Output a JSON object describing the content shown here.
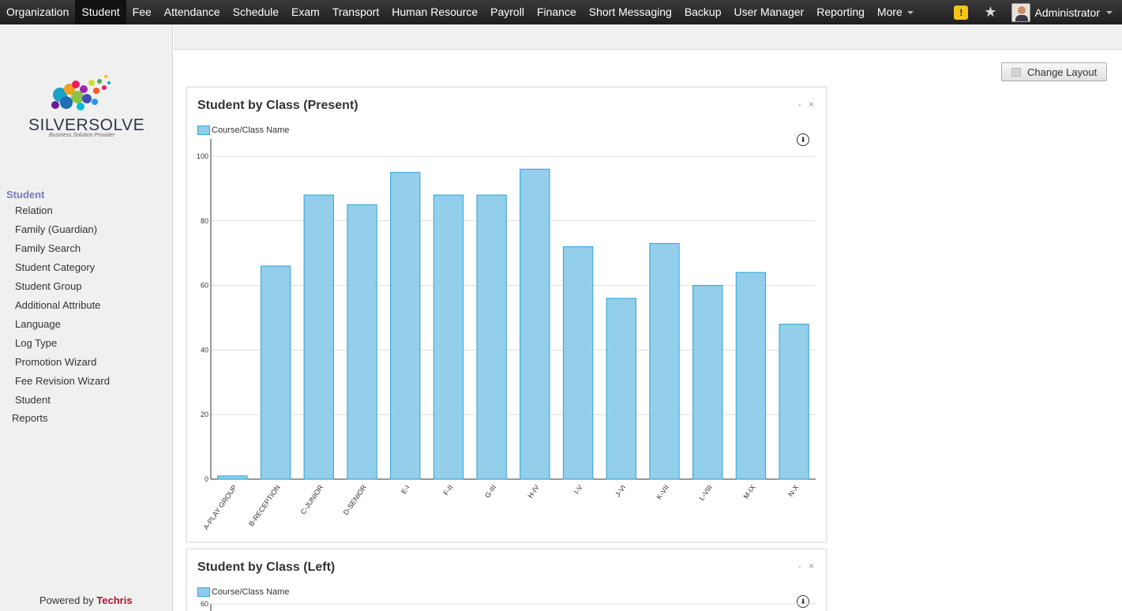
{
  "nav": {
    "items": [
      "Organization",
      "Student",
      "Fee",
      "Attendance",
      "Schedule",
      "Exam",
      "Transport",
      "Human Resource",
      "Payroll",
      "Finance",
      "Short Messaging",
      "Backup",
      "User Manager",
      "Reporting",
      "More"
    ],
    "active": "Student",
    "warning_glyph": "!",
    "star_glyph": "★",
    "user": "Administrator"
  },
  "logo": {
    "name": "SILVERSOLVE",
    "tagline": "Business Solution Provider"
  },
  "sidebar": {
    "section": "Student",
    "items": [
      "Relation",
      "Family (Guardian)",
      "Family Search",
      "Student Category",
      "Student Group",
      "Additional Attribute",
      "Language",
      "Log Type",
      "Promotion Wizard",
      "Fee Revision Wizard",
      "Student"
    ],
    "reports": "Reports",
    "powered_prefix": "Powered by",
    "powered_brand": "Techris"
  },
  "toolbar": {
    "change_layout": "Change Layout"
  },
  "panels": [
    {
      "title": "Student by Class (Present)",
      "controls": "- ×",
      "legend": "Course/Class Name"
    },
    {
      "title": "Student by Class (Left)",
      "controls": "- ×",
      "legend": "Course/Class Name"
    }
  ],
  "colors": {
    "bar_fill": "#8ecdea",
    "bar_stroke": "#36a8d9",
    "nav_bg": "#2b2b2b",
    "sidebar_heading": "#7a79b8",
    "brand": "#a6192e"
  },
  "chart_data": [
    {
      "type": "bar",
      "title": "Student by Class (Present)",
      "legend": [
        "Course/Class Name"
      ],
      "categories": [
        "A-PLAY GROUP",
        "B-RECEPTION",
        "C-JUNIOR",
        "D-SENIOR",
        "E-I",
        "F-II",
        "G-III",
        "H-IV",
        "I-V",
        "J-VI",
        "K-VII",
        "L-VIII",
        "M-IX",
        "N-X"
      ],
      "values": [
        1,
        66,
        88,
        85,
        95,
        88,
        88,
        96,
        72,
        56,
        73,
        60,
        64,
        48
      ],
      "yticks": [
        0,
        20,
        40,
        60,
        80,
        100
      ],
      "ylim": [
        0,
        100
      ],
      "grid": true
    },
    {
      "type": "bar",
      "title": "Student by Class (Left)",
      "legend": [
        "Course/Class Name"
      ],
      "yticks": [
        60
      ],
      "ylim": [
        0,
        60
      ],
      "grid": true
    }
  ]
}
